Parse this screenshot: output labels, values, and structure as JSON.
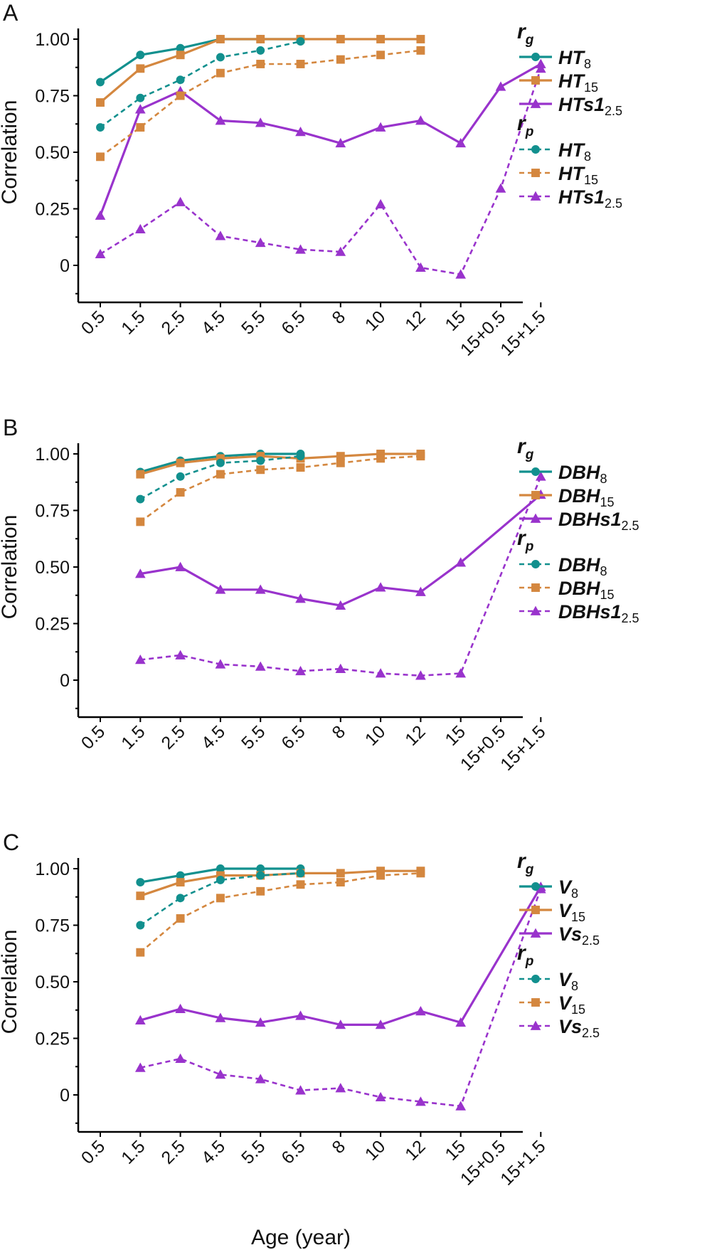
{
  "chart_data": [
    {
      "panel": "A",
      "type": "line",
      "ylabel": "Correlation",
      "xlabel": "",
      "categories": [
        "0.5",
        "1.5",
        "2.5",
        "4.5",
        "5.5",
        "6.5",
        "8",
        "10",
        "12",
        "15",
        "15+0.5",
        "15+1.5"
      ],
      "ylim": [
        -0.15,
        1.05
      ],
      "yticks": [
        0,
        0.25,
        0.5,
        0.75,
        1.0
      ],
      "ytick_labels": [
        "0",
        "0.25",
        "0.50",
        "0.75",
        "1.00"
      ],
      "legend_titles": [
        {
          "main": "r",
          "sub": "g"
        },
        {
          "main": "r",
          "sub": "p"
        }
      ],
      "series": [
        {
          "group": "rg",
          "label": "HT",
          "sub": "8",
          "color": "#12908e",
          "marker": "circle",
          "dash": false,
          "values": [
            0.81,
            0.93,
            0.96,
            1.0,
            1.0,
            1.0,
            null,
            null,
            null,
            null,
            null,
            null
          ]
        },
        {
          "group": "rg",
          "label": "HT",
          "sub": "15",
          "color": "#d4873f",
          "marker": "square",
          "dash": false,
          "values": [
            0.72,
            0.87,
            0.93,
            1.0,
            1.0,
            1.0,
            1.0,
            1.0,
            1.0,
            null,
            null,
            null
          ]
        },
        {
          "group": "rg",
          "label": "HTs1",
          "sub": "2.5",
          "color": "#9933cc",
          "marker": "triangle",
          "dash": false,
          "values": [
            0.22,
            0.69,
            0.77,
            0.64,
            0.63,
            0.59,
            0.54,
            0.61,
            0.64,
            0.54,
            0.79,
            0.89
          ]
        },
        {
          "group": "rp",
          "label": "HT",
          "sub": "8",
          "color": "#12908e",
          "marker": "circle",
          "dash": true,
          "values": [
            0.61,
            0.74,
            0.82,
            0.92,
            0.95,
            0.99,
            null,
            null,
            null,
            null,
            null,
            null
          ]
        },
        {
          "group": "rp",
          "label": "HT",
          "sub": "15",
          "color": "#d4873f",
          "marker": "square",
          "dash": true,
          "values": [
            0.48,
            0.61,
            0.75,
            0.85,
            0.89,
            0.89,
            0.91,
            0.93,
            0.95,
            null,
            null,
            null
          ]
        },
        {
          "group": "rp",
          "label": "HTs1",
          "sub": "2.5",
          "color": "#9933cc",
          "marker": "triangle",
          "dash": true,
          "values": [
            0.05,
            0.16,
            0.28,
            0.13,
            0.1,
            0.07,
            0.06,
            0.27,
            -0.01,
            -0.04,
            0.34,
            0.87
          ]
        }
      ]
    },
    {
      "panel": "B",
      "type": "line",
      "ylabel": "Correlation",
      "xlabel": "",
      "categories": [
        "0.5",
        "1.5",
        "2.5",
        "4.5",
        "5.5",
        "6.5",
        "8",
        "10",
        "12",
        "15",
        "15+0.5",
        "15+1.5"
      ],
      "ylim": [
        -0.15,
        1.05
      ],
      "yticks": [
        0,
        0.25,
        0.5,
        0.75,
        1.0
      ],
      "ytick_labels": [
        "0",
        "0.25",
        "0.50",
        "0.75",
        "1.00"
      ],
      "legend_titles": [
        {
          "main": "r",
          "sub": "g"
        },
        {
          "main": "r",
          "sub": "p"
        }
      ],
      "series": [
        {
          "group": "rg",
          "label": "DBH",
          "sub": "8",
          "color": "#12908e",
          "marker": "circle",
          "dash": false,
          "values": [
            null,
            0.92,
            0.97,
            0.99,
            1.0,
            1.0,
            null,
            null,
            null,
            null,
            null,
            null
          ]
        },
        {
          "group": "rg",
          "label": "DBH",
          "sub": "15",
          "color": "#d4873f",
          "marker": "square",
          "dash": false,
          "values": [
            null,
            0.91,
            0.96,
            0.98,
            0.99,
            0.98,
            0.99,
            1.0,
            1.0,
            null,
            null,
            null
          ]
        },
        {
          "group": "rg",
          "label": "DBHs1",
          "sub": "2.5",
          "color": "#9933cc",
          "marker": "triangle",
          "dash": false,
          "values": [
            null,
            0.47,
            0.5,
            0.4,
            0.4,
            0.36,
            0.33,
            0.41,
            0.39,
            0.52,
            null,
            0.82
          ]
        },
        {
          "group": "rp",
          "label": "DBH",
          "sub": "8",
          "color": "#12908e",
          "marker": "circle",
          "dash": true,
          "values": [
            null,
            0.8,
            0.9,
            0.96,
            0.97,
            0.99,
            null,
            null,
            null,
            null,
            null,
            null
          ]
        },
        {
          "group": "rp",
          "label": "DBH",
          "sub": "15",
          "color": "#d4873f",
          "marker": "square",
          "dash": true,
          "values": [
            null,
            0.7,
            0.83,
            0.91,
            0.93,
            0.94,
            0.96,
            0.98,
            0.99,
            null,
            null,
            null
          ]
        },
        {
          "group": "rp",
          "label": "DBHs1",
          "sub": "2.5",
          "color": "#9933cc",
          "marker": "triangle",
          "dash": true,
          "values": [
            null,
            0.09,
            0.11,
            0.07,
            0.06,
            0.04,
            0.05,
            0.03,
            0.02,
            0.03,
            null,
            0.9
          ]
        }
      ]
    },
    {
      "panel": "C",
      "type": "line",
      "ylabel": "Correlation",
      "xlabel": "Age (year)",
      "categories": [
        "0.5",
        "1.5",
        "2.5",
        "4.5",
        "5.5",
        "6.5",
        "8",
        "10",
        "12",
        "15",
        "15+0.5",
        "15+1.5"
      ],
      "ylim": [
        -0.15,
        1.05
      ],
      "yticks": [
        0,
        0.25,
        0.5,
        0.75,
        1.0
      ],
      "ytick_labels": [
        "0",
        "0.25",
        "0.50",
        "0.75",
        "1.00"
      ],
      "legend_titles": [
        {
          "main": "r",
          "sub": "g"
        },
        {
          "main": "r",
          "sub": "p"
        }
      ],
      "series": [
        {
          "group": "rg",
          "label": "V",
          "sub": "8",
          "color": "#12908e",
          "marker": "circle",
          "dash": false,
          "values": [
            null,
            0.94,
            0.97,
            1.0,
            1.0,
            1.0,
            null,
            null,
            null,
            null,
            null,
            null
          ]
        },
        {
          "group": "rg",
          "label": "V",
          "sub": "15",
          "color": "#d4873f",
          "marker": "square",
          "dash": false,
          "values": [
            null,
            0.88,
            0.94,
            0.97,
            0.97,
            0.98,
            0.98,
            0.99,
            0.99,
            null,
            null,
            null
          ]
        },
        {
          "group": "rg",
          "label": "Vs",
          "sub": "2.5",
          "color": "#9933cc",
          "marker": "triangle",
          "dash": false,
          "values": [
            null,
            0.33,
            0.38,
            0.34,
            0.32,
            0.35,
            0.31,
            0.31,
            0.37,
            0.32,
            null,
            0.92
          ]
        },
        {
          "group": "rp",
          "label": "V",
          "sub": "8",
          "color": "#12908e",
          "marker": "circle",
          "dash": true,
          "values": [
            null,
            0.75,
            0.87,
            0.95,
            0.97,
            0.98,
            null,
            null,
            null,
            null,
            null,
            null
          ]
        },
        {
          "group": "rp",
          "label": "V",
          "sub": "15",
          "color": "#d4873f",
          "marker": "square",
          "dash": true,
          "values": [
            null,
            0.63,
            0.78,
            0.87,
            0.9,
            0.93,
            0.94,
            0.97,
            0.98,
            null,
            null,
            null
          ]
        },
        {
          "group": "rp",
          "label": "Vs",
          "sub": "2.5",
          "color": "#9933cc",
          "marker": "triangle",
          "dash": true,
          "values": [
            null,
            0.12,
            0.16,
            0.09,
            0.07,
            0.02,
            0.03,
            -0.01,
            -0.03,
            -0.05,
            null,
            0.91
          ]
        }
      ]
    }
  ]
}
